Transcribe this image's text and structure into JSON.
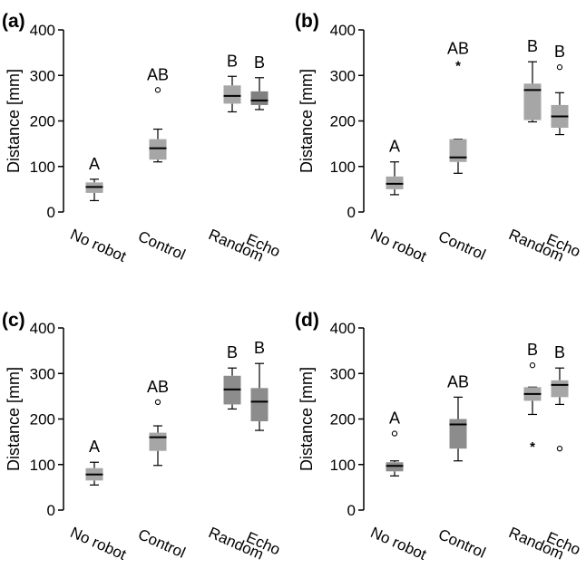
{
  "chart_data": [
    {
      "panel": "(a)",
      "type": "boxplot",
      "ylabel": "Distance [mm]",
      "ylim": [
        0,
        400
      ],
      "yticks": [
        0,
        100,
        200,
        300,
        400
      ],
      "categories": [
        "No robot",
        "Control",
        "Random",
        "Echo"
      ],
      "boxes": [
        {
          "category": "No robot",
          "min": 25,
          "q1": 42,
          "median": 55,
          "q3": 65,
          "max": 72,
          "outliers": [],
          "extremes": [],
          "color": "#a6a6a6",
          "group": "A"
        },
        {
          "category": "Control",
          "min": 110,
          "q1": 115,
          "median": 140,
          "q3": 160,
          "max": 182,
          "outliers": [
            268
          ],
          "extremes": [],
          "color": "#a6a6a6",
          "group": "AB"
        },
        {
          "category": "Random",
          "min": 220,
          "q1": 238,
          "median": 255,
          "q3": 278,
          "max": 298,
          "outliers": [],
          "extremes": [],
          "color": "#a6a6a6",
          "group": "B"
        },
        {
          "category": "Echo",
          "min": 225,
          "q1": 235,
          "median": 245,
          "q3": 265,
          "max": 295,
          "outliers": [],
          "extremes": [],
          "color": "#7f7f7f",
          "group": "B"
        }
      ]
    },
    {
      "panel": "(b)",
      "type": "boxplot",
      "ylabel": "Distance [mm]",
      "ylim": [
        0,
        400
      ],
      "yticks": [
        0,
        100,
        200,
        300,
        400
      ],
      "categories": [
        "No robot",
        "Control",
        "Random",
        "Echo"
      ],
      "boxes": [
        {
          "category": "No robot",
          "min": 38,
          "q1": 50,
          "median": 62,
          "q3": 78,
          "max": 110,
          "outliers": [],
          "extremes": [],
          "color": "#a6a6a6",
          "group": "A"
        },
        {
          "category": "Control",
          "min": 85,
          "q1": 110,
          "median": 120,
          "q3": 160,
          "max": 160,
          "outliers": [],
          "extremes": [
            325
          ],
          "color": "#a6a6a6",
          "group": "AB"
        },
        {
          "category": "Random",
          "min": 198,
          "q1": 202,
          "median": 268,
          "q3": 282,
          "max": 330,
          "outliers": [],
          "extremes": [],
          "color": "#a6a6a6",
          "group": "B"
        },
        {
          "category": "Echo",
          "min": 170,
          "q1": 185,
          "median": 210,
          "q3": 235,
          "max": 262,
          "outliers": [
            318
          ],
          "extremes": [],
          "color": "#a6a6a6",
          "group": "B"
        }
      ]
    },
    {
      "panel": "(c)",
      "type": "boxplot",
      "ylabel": "Distance [mm]",
      "ylim": [
        0,
        400
      ],
      "yticks": [
        0,
        100,
        200,
        300,
        400
      ],
      "categories": [
        "No robot",
        "Control",
        "Random",
        "Echo"
      ],
      "boxes": [
        {
          "category": "No robot",
          "min": 55,
          "q1": 65,
          "median": 78,
          "q3": 92,
          "max": 105,
          "outliers": [],
          "extremes": [],
          "color": "#a6a6a6",
          "group": "A"
        },
        {
          "category": "Control",
          "min": 98,
          "q1": 130,
          "median": 160,
          "q3": 170,
          "max": 185,
          "outliers": [
            237
          ],
          "extremes": [],
          "color": "#a6a6a6",
          "group": "AB"
        },
        {
          "category": "Random",
          "min": 222,
          "q1": 232,
          "median": 265,
          "q3": 295,
          "max": 312,
          "outliers": [],
          "extremes": [],
          "color": "#8c8c8c",
          "group": "B"
        },
        {
          "category": "Echo",
          "min": 175,
          "q1": 195,
          "median": 238,
          "q3": 268,
          "max": 322,
          "outliers": [],
          "extremes": [],
          "color": "#8c8c8c",
          "group": "B"
        }
      ]
    },
    {
      "panel": "(d)",
      "type": "boxplot",
      "ylabel": "Distance [mm]",
      "ylim": [
        0,
        400
      ],
      "yticks": [
        0,
        100,
        200,
        300,
        400
      ],
      "categories": [
        "No robot",
        "Control",
        "Random",
        "Echo"
      ],
      "boxes": [
        {
          "category": "No robot",
          "min": 75,
          "q1": 85,
          "median": 97,
          "q3": 105,
          "max": 108,
          "outliers": [
            168
          ],
          "extremes": [],
          "color": "#8c8c8c",
          "group": "A"
        },
        {
          "category": "Control",
          "min": 108,
          "q1": 135,
          "median": 188,
          "q3": 200,
          "max": 248,
          "outliers": [],
          "extremes": [],
          "color": "#8c8c8c",
          "group": "AB"
        },
        {
          "category": "Random",
          "min": 210,
          "q1": 240,
          "median": 255,
          "q3": 270,
          "max": 270,
          "outliers": [
            318
          ],
          "extremes": [
            143
          ],
          "color": "#a6a6a6",
          "group": "B"
        },
        {
          "category": "Echo",
          "min": 232,
          "q1": 248,
          "median": 275,
          "q3": 285,
          "max": 312,
          "outliers": [
            135
          ],
          "extremes": [],
          "color": "#a6a6a6",
          "group": "B"
        }
      ]
    }
  ]
}
